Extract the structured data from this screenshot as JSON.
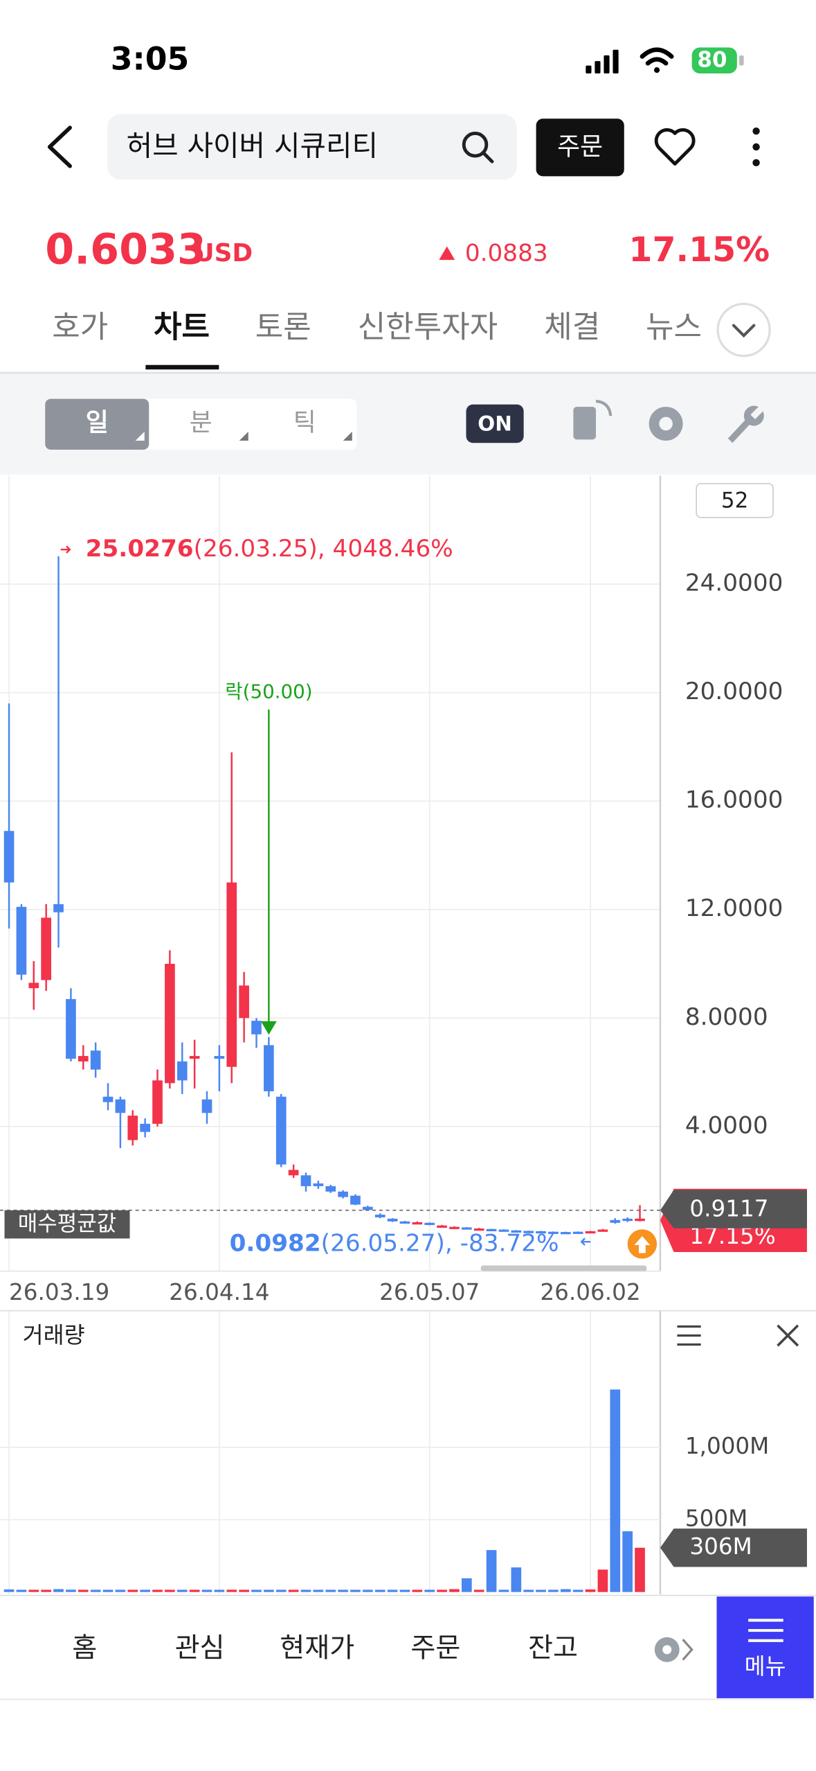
{
  "status": {
    "time": "3:05",
    "battery": "80"
  },
  "header": {
    "search": "허브 사이버 시큐리티",
    "order": "주문"
  },
  "quote": {
    "price": "0.6033",
    "currency": "USD",
    "change": "0.0883",
    "change_pct": "17.15%"
  },
  "tabs": {
    "items": [
      "호가",
      "차트",
      "토론",
      "신한투자자",
      "체결",
      "뉴스"
    ],
    "active": 1
  },
  "toolbar": {
    "periods": [
      "일",
      "분",
      "틱"
    ],
    "active": 0,
    "toggle": "ON",
    "count": 52
  },
  "chart": {
    "type": "candlestick",
    "up_color": "#f2334a",
    "down_color": "#4a86f0",
    "grid": true,
    "candles": [
      [
        14.9,
        19.6,
        11.3,
        13.0
      ],
      [
        12.1,
        12.2,
        9.4,
        9.6
      ],
      [
        9.1,
        10.1,
        8.3,
        9.3
      ],
      [
        9.4,
        12.2,
        9.0,
        11.7
      ],
      [
        12.2,
        25.0276,
        10.6,
        11.9
      ],
      [
        8.7,
        9.1,
        6.4,
        6.5
      ],
      [
        6.4,
        7.0,
        6.1,
        6.6
      ],
      [
        6.8,
        7.1,
        5.8,
        6.1
      ],
      [
        5.1,
        5.6,
        4.6,
        4.9
      ],
      [
        5.0,
        5.1,
        3.2,
        4.5
      ],
      [
        3.5,
        4.6,
        3.3,
        4.4
      ],
      [
        4.1,
        4.3,
        3.6,
        3.8
      ],
      [
        4.1,
        6.1,
        4.0,
        5.7
      ],
      [
        5.6,
        10.5,
        5.4,
        10.0
      ],
      [
        6.4,
        7.1,
        5.2,
        5.7
      ],
      [
        6.5,
        7.2,
        5.4,
        6.6
      ],
      [
        5.0,
        5.3,
        4.1,
        4.5
      ],
      [
        6.6,
        7.0,
        5.3,
        6.5
      ],
      [
        6.2,
        17.8,
        5.6,
        13.0
      ],
      [
        8.0,
        9.7,
        7.1,
        9.2
      ],
      [
        7.9,
        8.0,
        6.9,
        7.4
      ],
      [
        7.0,
        7.3,
        5.1,
        5.3
      ],
      [
        5.1,
        5.2,
        2.5,
        2.6
      ],
      [
        2.2,
        2.6,
        2.1,
        2.4
      ],
      [
        2.2,
        2.3,
        1.6,
        1.8
      ],
      [
        1.9,
        2.0,
        1.7,
        1.8
      ],
      [
        1.8,
        1.85,
        1.55,
        1.6
      ],
      [
        1.6,
        1.65,
        1.35,
        1.4
      ],
      [
        1.45,
        1.5,
        1.1,
        1.12
      ],
      [
        1.04,
        1.08,
        0.9,
        0.92
      ],
      [
        0.75,
        0.8,
        0.62,
        0.65
      ],
      [
        0.6,
        0.62,
        0.48,
        0.5
      ],
      [
        0.5,
        0.52,
        0.43,
        0.45
      ],
      [
        0.42,
        0.5,
        0.4,
        0.47
      ],
      [
        0.45,
        0.46,
        0.36,
        0.38
      ],
      [
        0.3,
        0.37,
        0.28,
        0.35
      ],
      [
        0.27,
        0.32,
        0.25,
        0.3
      ],
      [
        0.28,
        0.29,
        0.22,
        0.24
      ],
      [
        0.2,
        0.26,
        0.19,
        0.24
      ],
      [
        0.22,
        0.23,
        0.17,
        0.18
      ],
      [
        0.2,
        0.21,
        0.14,
        0.15
      ],
      [
        0.17,
        0.18,
        0.12,
        0.13
      ],
      [
        0.15,
        0.16,
        0.11,
        0.12
      ],
      [
        0.14,
        0.15,
        0.1,
        0.11
      ],
      [
        0.12,
        0.13,
        0.1,
        0.1
      ],
      [
        0.11,
        0.12,
        0.0982,
        0.1
      ],
      [
        0.12,
        0.13,
        0.1,
        0.11
      ],
      [
        0.11,
        0.15,
        0.1,
        0.14
      ],
      [
        0.15,
        0.22,
        0.14,
        0.2
      ],
      [
        0.55,
        0.62,
        0.42,
        0.45
      ],
      [
        0.6,
        0.65,
        0.48,
        0.52
      ],
      [
        0.515,
        1.1,
        0.5,
        0.6033
      ]
    ],
    "ylim": [
      -1.333,
      28
    ],
    "yticks": [
      {
        "value": 4,
        "label": "4.0000"
      },
      {
        "value": 8,
        "label": "8.0000"
      },
      {
        "value": 12,
        "label": "12.0000"
      },
      {
        "value": 16,
        "label": "16.0000"
      },
      {
        "value": 20,
        "label": "20.0000"
      },
      {
        "value": 24,
        "label": "24.0000"
      }
    ],
    "xticks": [
      {
        "value": 0,
        "label": "26.03.19"
      },
      {
        "value": 17,
        "label": "26.04.14"
      },
      {
        "value": 34,
        "label": "26.05.07"
      },
      {
        "value": 47,
        "label": "26.06.02"
      }
    ],
    "max_detail": "(26.03.25), 4048.46%",
    "min_detail": "(26.05.27), -83.72%",
    "event_label": "락(50.00)",
    "avg_label": "매수평균값",
    "avg_price": 0.9117
  },
  "volume": {
    "title": "거래량",
    "values": [
      18,
      15,
      12,
      14,
      20,
      16,
      10,
      9,
      8,
      11,
      9,
      7,
      10,
      15,
      9,
      8,
      7,
      8,
      16,
      12,
      9,
      10,
      14,
      8,
      7,
      6,
      6,
      7,
      8,
      9,
      10,
      11,
      9,
      10,
      12,
      14,
      20,
      95,
      15,
      290,
      12,
      170,
      10,
      12,
      14,
      20,
      12,
      18,
      155,
      1400,
      420,
      306
    ],
    "ylim": [
      0,
      1945
    ],
    "yticks": [
      {
        "value": 500,
        "label": "500M"
      },
      {
        "value": 1000,
        "label": "1,000M"
      }
    ],
    "last_label": "306M"
  },
  "nav": {
    "items": [
      "홈",
      "관심",
      "현재가",
      "주문",
      "잔고"
    ],
    "menu": "메뉴"
  }
}
